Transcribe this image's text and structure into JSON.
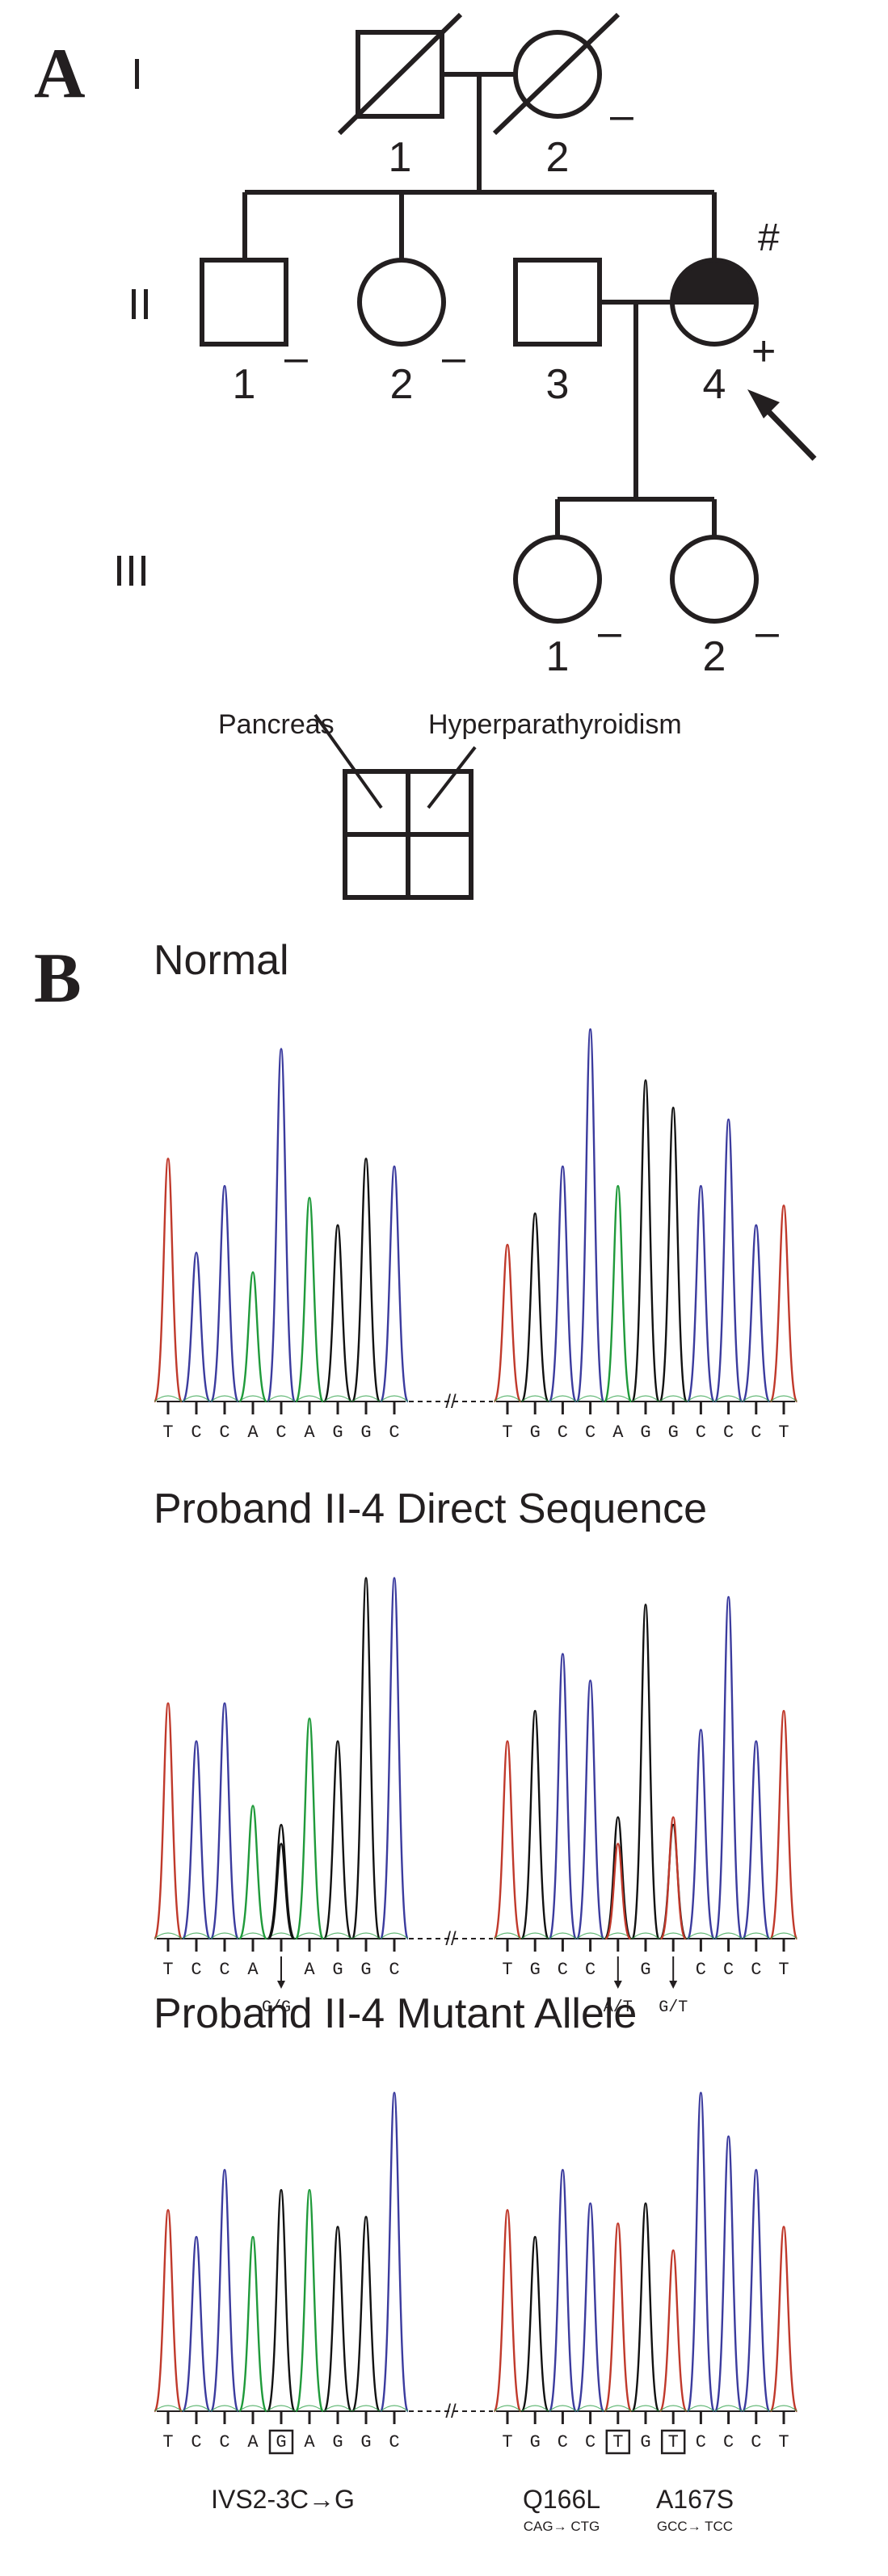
{
  "colors": {
    "ink": "#231f20",
    "trace_black": "#111111",
    "trace_blue": "#3b3b9e",
    "trace_green": "#1f9a3a",
    "trace_red": "#c0392b"
  },
  "panel_a": {
    "letter": "A",
    "generations": [
      "I",
      "II",
      "III"
    ],
    "gen_I": {
      "ids": [
        "1",
        "2"
      ],
      "marks": [
        "",
        "–"
      ]
    },
    "gen_II": {
      "ids": [
        "1",
        "2",
        "3",
        "4"
      ],
      "marks": [
        "–",
        "–",
        "",
        "+"
      ],
      "hash": "#"
    },
    "gen_III": {
      "ids": [
        "1",
        "2"
      ],
      "marks": [
        "–",
        "–"
      ]
    },
    "legend": {
      "left_label": "Pancreas",
      "right_label": "Hyperparathyroidism"
    }
  },
  "panel_b": {
    "letter": "B",
    "gap_symbol": "//",
    "rows": [
      {
        "title": "Normal",
        "left_bases": [
          "T",
          "C",
          "C",
          "A",
          "C",
          "A",
          "G",
          "G",
          "C"
        ],
        "right_bases": [
          "T",
          "G",
          "C",
          "C",
          "A",
          "G",
          "G",
          "C",
          "C",
          "C",
          "T"
        ],
        "left_notes": [],
        "right_notes": []
      },
      {
        "title": "Proband II-4 Direct Sequence",
        "left_bases": [
          "T",
          "C",
          "C",
          "A",
          "",
          "A",
          "G",
          "G",
          "C"
        ],
        "right_bases": [
          "T",
          "G",
          "C",
          "C",
          "",
          "G",
          "",
          "C",
          "C",
          "C",
          "T"
        ],
        "left_notes": [
          "C/G"
        ],
        "right_notes": [
          "A/T",
          "G/T"
        ]
      },
      {
        "title": "Proband II-4 Mutant Allele",
        "left_bases": [
          "T",
          "C",
          "C",
          "A",
          "G",
          "A",
          "G",
          "G",
          "C"
        ],
        "right_bases": [
          "T",
          "G",
          "C",
          "C",
          "T",
          "G",
          "T",
          "C",
          "C",
          "C",
          "T"
        ],
        "left_notes": [],
        "right_notes": [],
        "mutations": [
          {
            "label": "IVS2-3C→G",
            "codon": ""
          },
          {
            "label": "Q166L",
            "codon": "CAG→ CTG"
          },
          {
            "label": "A167S",
            "codon": "GCC→ TCC"
          }
        ]
      }
    ]
  }
}
